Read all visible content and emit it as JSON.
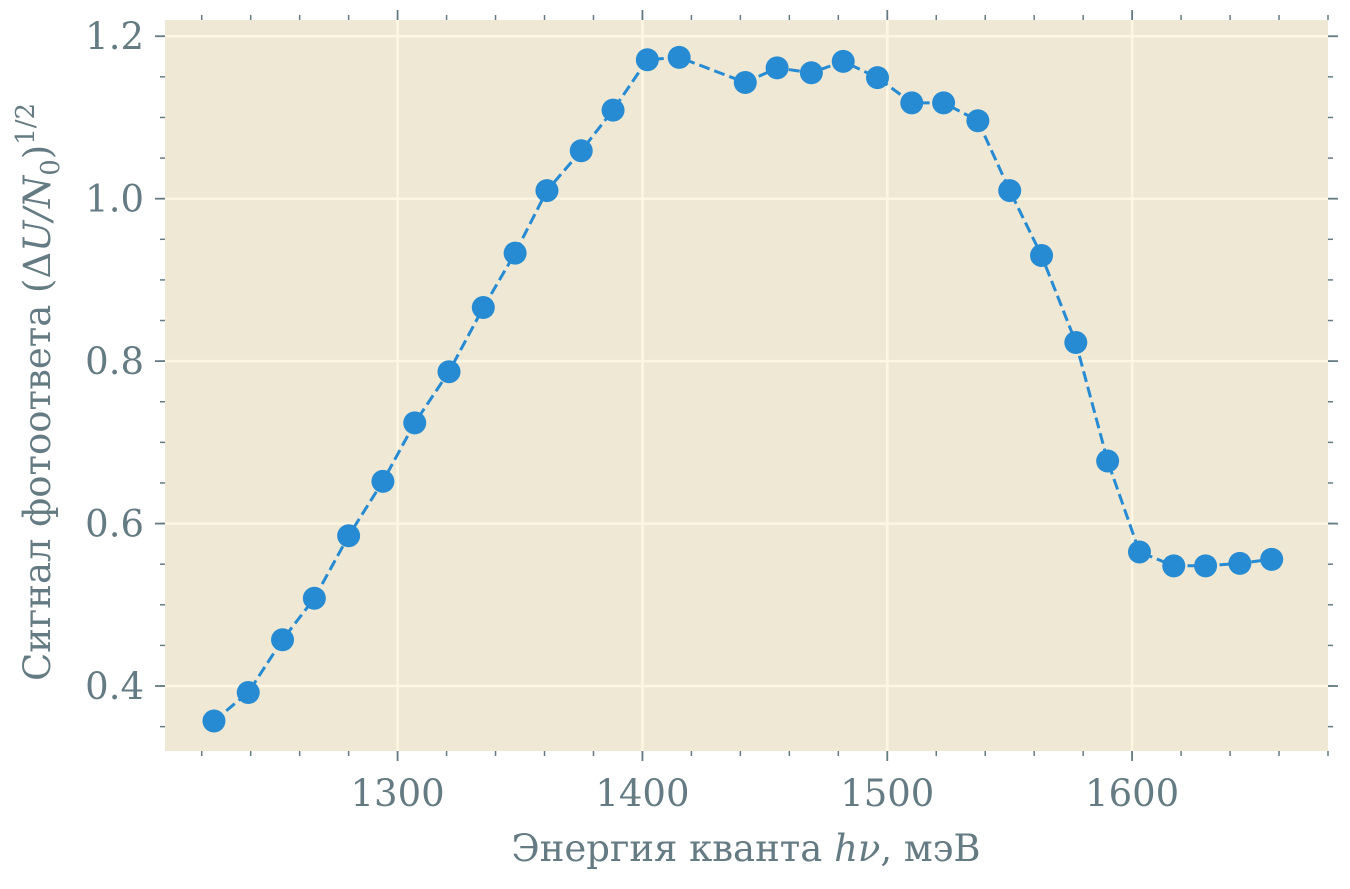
{
  "chart_data": {
    "type": "line",
    "title": "",
    "xlabel": "Энергия кванта hν, мэВ",
    "xlabel_parts": {
      "prefix": "Энергия кванта ",
      "var": "hν",
      "suffix": ", мэВ"
    },
    "ylabel": "Сигнал фотоответа (ΔU/N0)^1/2",
    "ylabel_parts": {
      "prefix": "Сигнал фотоответа (Δ",
      "var": "U/N",
      "sub": "0",
      "close": ")",
      "sup": "1/2"
    },
    "xlim": [
      1205,
      1680
    ],
    "ylim": [
      0.32,
      1.22
    ],
    "x_ticks": [
      1300,
      1400,
      1500,
      1600
    ],
    "x_tick_labels": [
      "1300",
      "1400",
      "1500",
      "1600"
    ],
    "y_ticks": [
      0.4,
      0.6,
      0.8,
      1.0,
      1.2
    ],
    "y_tick_labels": [
      "0.4",
      "0.6",
      "0.8",
      "1.0",
      "1.2"
    ],
    "x_minor_step": 20,
    "y_minor_step": 0.05,
    "grid": true,
    "line_style": "dashed",
    "marker": "circle",
    "colors": {
      "plot_background": "#eee8d5",
      "grid": "#fdf6e3",
      "series": "#268bd2",
      "text": "#657b83",
      "tick": "#657b83"
    },
    "series": [
      {
        "x": [
          1225,
          1239,
          1253,
          1266,
          1280,
          1294,
          1307,
          1321,
          1335,
          1348,
          1361,
          1375,
          1388,
          1402,
          1415,
          1442,
          1455,
          1469,
          1482,
          1496,
          1510,
          1523,
          1537,
          1550,
          1563,
          1577,
          1590,
          1603,
          1617,
          1630,
          1644,
          1657
        ],
        "y": [
          0.357,
          0.392,
          0.457,
          0.508,
          0.585,
          0.652,
          0.724,
          0.787,
          0.866,
          0.933,
          1.01,
          1.059,
          1.109,
          1.171,
          1.174,
          1.143,
          1.161,
          1.155,
          1.169,
          1.149,
          1.118,
          1.118,
          1.096,
          1.01,
          0.93,
          0.823,
          0.677,
          0.565,
          0.548,
          0.548,
          0.551,
          0.556
        ]
      }
    ]
  }
}
